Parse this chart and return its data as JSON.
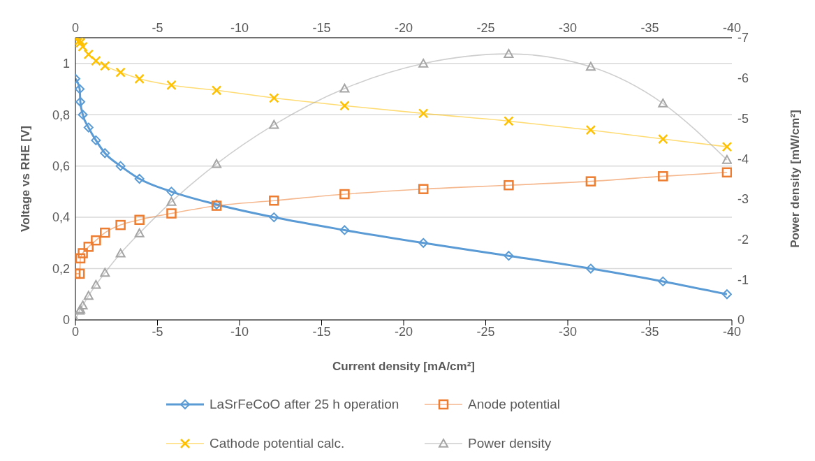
{
  "chart_data": {
    "type": "line",
    "xlabel": "Current density [mA/cm²]",
    "ylabel": "Voltage vs RHE [V]",
    "y2label": "Power density [mW/cm²]",
    "x": [
      0,
      -0.26,
      -0.3,
      -0.45,
      -0.8,
      -1.25,
      -1.8,
      -2.75,
      -3.9,
      -5.85,
      -8.6,
      -12.1,
      -16.4,
      -21.2,
      -26.4,
      -31.4,
      -35.8,
      -39.7
    ],
    "series": [
      {
        "name": "LaSrFeCoO after 25 h operation",
        "color": "#5b9bd5",
        "marker": "diamond",
        "values": [
          0.94,
          0.9,
          0.85,
          0.8,
          0.75,
          0.7,
          0.65,
          0.6,
          0.55,
          0.5,
          0.45,
          0.4,
          0.35,
          0.3,
          0.25,
          0.2,
          0.15,
          0.1
        ]
      },
      {
        "name": "Anode potential",
        "color": "#ed7d31",
        "marker": "square",
        "values": [
          0.18,
          0.18,
          0.24,
          0.26,
          0.285,
          0.31,
          0.34,
          0.37,
          0.39,
          0.415,
          0.445,
          0.465,
          0.49,
          0.51,
          0.525,
          0.54,
          0.56,
          0.575
        ]
      },
      {
        "name": "Cathode potential calc.",
        "color": "#ffc000",
        "marker": "cross",
        "values": [
          1.095,
          1.09,
          1.08,
          1.065,
          1.035,
          1.01,
          0.99,
          0.965,
          0.94,
          0.915,
          0.895,
          0.865,
          0.835,
          0.805,
          0.775,
          0.74,
          0.705,
          0.675
        ]
      },
      {
        "name": "Power density",
        "color": "#a5a5a5",
        "marker": "triangle",
        "axis": "y2",
        "values": [
          0,
          -0.23,
          -0.26,
          -0.36,
          -0.6,
          -0.87,
          -1.17,
          -1.65,
          -2.15,
          -2.93,
          -3.87,
          -4.84,
          -5.74,
          -6.36,
          -6.6,
          -6.28,
          -5.37,
          -3.97
        ]
      }
    ],
    "xlim": [
      0,
      -40
    ],
    "xticks": [
      0,
      -5,
      -10,
      -15,
      -20,
      -25,
      -30,
      -35,
      -40
    ],
    "x2lim": [
      0,
      -40
    ],
    "x2ticks": [
      0,
      -5,
      -10,
      -15,
      -20,
      -25,
      -30,
      -35,
      -40
    ],
    "ylim": [
      0,
      1.1
    ],
    "yticks": [
      0,
      {
        "value": 0.2,
        "label": "0,2"
      },
      {
        "value": 0.4,
        "label": "0,4"
      },
      {
        "value": 0.6,
        "label": "0,6"
      },
      {
        "value": 0.8,
        "label": "0,8"
      },
      1
    ],
    "y2lim": [
      0,
      -7
    ],
    "y2ticks": [
      0,
      -1,
      -2,
      -3,
      -4,
      -5,
      -6,
      -7
    ],
    "grid": "y",
    "legend": "bottom"
  }
}
